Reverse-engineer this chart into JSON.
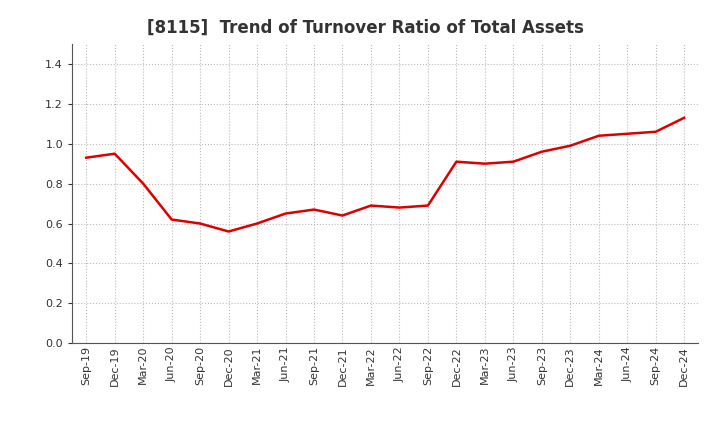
{
  "title": "[8115]  Trend of Turnover Ratio of Total Assets",
  "labels": [
    "Sep-19",
    "Dec-19",
    "Mar-20",
    "Jun-20",
    "Sep-20",
    "Dec-20",
    "Mar-21",
    "Jun-21",
    "Sep-21",
    "Dec-21",
    "Mar-22",
    "Jun-22",
    "Sep-22",
    "Dec-22",
    "Mar-23",
    "Jun-23",
    "Sep-23",
    "Dec-23",
    "Mar-24",
    "Jun-24",
    "Sep-24",
    "Dec-24"
  ],
  "values": [
    0.93,
    0.95,
    0.8,
    0.62,
    0.6,
    0.56,
    0.6,
    0.65,
    0.67,
    0.64,
    0.69,
    0.68,
    0.69,
    0.91,
    0.9,
    0.91,
    0.96,
    0.99,
    1.04,
    1.05,
    1.06,
    1.13
  ],
  "line_color": "#dd0000",
  "line_width": 1.8,
  "ylim": [
    0.0,
    1.5
  ],
  "yticks": [
    0.0,
    0.2,
    0.4,
    0.6,
    0.8,
    1.0,
    1.2,
    1.4
  ],
  "background_color": "#ffffff",
  "grid_color": "#bbbbbb",
  "title_fontsize": 12,
  "tick_fontsize": 8,
  "title_color": "#333333"
}
